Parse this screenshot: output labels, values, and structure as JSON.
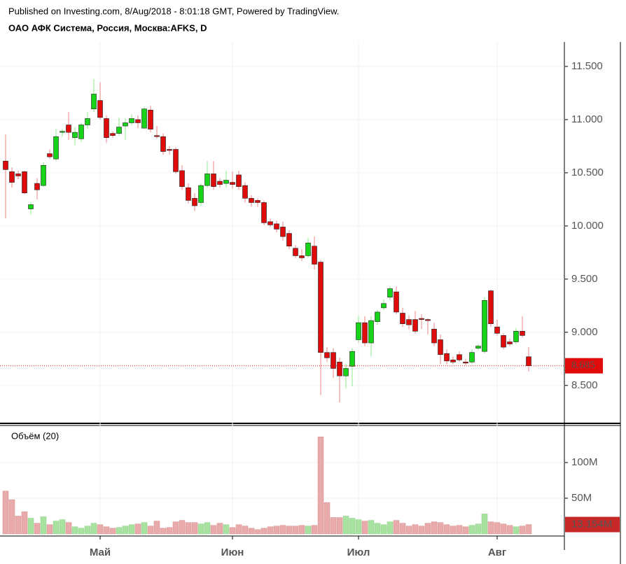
{
  "header": {
    "published": "Published on Investing.com, 8/Aug/2018 - 8:01:18 GMT, Powered by TradingView.",
    "symbol": "ОАО АФК Система, Россия, Москва:AFKS, D"
  },
  "chart_data": [
    {
      "type": "candlestick",
      "up_color": "#18d418",
      "down_color": "#e00c0c",
      "grid": true,
      "ylim": [
        8.15,
        11.73
      ],
      "yticks": [
        {
          "value": 8.5,
          "label": "8.500"
        },
        {
          "value": 9,
          "label": "9.000"
        },
        {
          "value": 9.5,
          "label": "9.500"
        },
        {
          "value": 10,
          "label": "10.000"
        },
        {
          "value": 10.5,
          "label": "10.500"
        },
        {
          "value": 11,
          "label": "11.000"
        },
        {
          "value": 11.5,
          "label": "11.500"
        }
      ],
      "open": [
        10.61,
        10.51,
        10.49,
        10.51,
        10.16,
        10.4,
        10.38,
        10.68,
        10.63,
        10.88,
        10.95,
        10.83,
        10.82,
        10.95,
        11.1,
        11.18,
        11.01,
        10.87,
        10.87,
        10.94,
        10.97,
        11.0,
        10.92,
        11.09,
        10.85,
        10.84,
        10.72,
        10.72,
        10.52,
        10.36,
        10.26,
        10.22,
        10.38,
        10.49,
        10.42,
        10.4,
        10.41,
        10.48,
        10.38,
        10.26,
        10.24,
        10.22,
        10.04,
        10.02,
        9.99,
        9.93,
        9.79,
        9.72,
        9.72,
        9.81,
        9.66,
        8.81,
        8.81,
        8.72,
        8.59,
        8.68,
        8.93,
        9.09,
        8.9,
        9.1,
        9.23,
        9.33,
        9.38,
        9.18,
        9.12,
        9.12,
        9.13,
        9.12,
        9.03,
        8.93,
        8.8,
        8.74,
        8.79,
        8.72,
        8.72,
        8.85,
        8.82,
        9.39,
        9.05,
        8.97,
        8.91,
        8.91,
        9.01,
        8.77
      ],
      "high": [
        10.86,
        10.55,
        10.52,
        10.52,
        10.22,
        10.45,
        10.6,
        10.72,
        10.91,
        10.91,
        11.07,
        10.93,
        10.97,
        11.07,
        11.38,
        11.35,
        11.04,
        10.89,
        11.02,
        11.01,
        11.05,
        11.04,
        11.12,
        11.13,
        10.94,
        10.87,
        10.75,
        10.74,
        10.57,
        10.4,
        10.31,
        10.4,
        10.61,
        10.61,
        10.45,
        10.52,
        10.51,
        10.52,
        10.41,
        10.29,
        10.26,
        10.24,
        10.07,
        10.05,
        10.04,
        9.96,
        9.82,
        9.78,
        9.89,
        9.9,
        9.68,
        8.86,
        8.85,
        8.76,
        8.7,
        8.85,
        9.15,
        9.15,
        9.15,
        9.21,
        9.31,
        9.43,
        9.43,
        9.23,
        9.16,
        9.2,
        9.17,
        9.13,
        9.09,
        8.98,
        8.84,
        8.77,
        8.82,
        8.75,
        8.84,
        8.89,
        9.33,
        9.4,
        9.12,
        8.99,
        8.94,
        9.04,
        9.15,
        8.86
      ],
      "low": [
        10.07,
        10.36,
        10.44,
        10.3,
        10.11,
        10.25,
        10.37,
        10.63,
        10.61,
        10.84,
        10.81,
        10.76,
        10.79,
        10.91,
        11.07,
        11.0,
        10.78,
        10.83,
        10.85,
        10.81,
        10.95,
        10.92,
        10.91,
        10.88,
        10.82,
        10.67,
        10.67,
        10.49,
        10.34,
        10.21,
        10.14,
        10.19,
        10.36,
        10.34,
        10.36,
        10.36,
        10.35,
        10.34,
        10.22,
        10.18,
        10.18,
        10.01,
        9.99,
        9.94,
        9.86,
        9.78,
        9.7,
        9.67,
        9.7,
        9.59,
        8.41,
        8.72,
        8.57,
        8.34,
        8.47,
        8.49,
        8.9,
        8.87,
        8.77,
        9.07,
        9.21,
        9.3,
        9.17,
        9.05,
        9.03,
        8.99,
        9.03,
        8.98,
        8.87,
        8.7,
        8.7,
        8.7,
        8.72,
        8.69,
        8.7,
        8.83,
        8.8,
        9.05,
        8.97,
        8.84,
        8.87,
        8.89,
        8.95,
        8.63
      ],
      "close": [
        10.53,
        10.41,
        10.47,
        10.31,
        10.2,
        10.34,
        10.57,
        10.65,
        10.84,
        10.89,
        10.88,
        10.88,
        10.95,
        11.01,
        11.24,
        11.02,
        10.83,
        10.85,
        10.93,
        10.97,
        11.01,
        10.97,
        11.1,
        10.91,
        10.84,
        10.7,
        10.71,
        10.51,
        10.37,
        10.24,
        10.19,
        10.38,
        10.49,
        10.37,
        10.39,
        10.43,
        10.39,
        10.37,
        10.26,
        10.22,
        10.22,
        10.03,
        10.01,
        9.97,
        9.9,
        9.81,
        9.72,
        9.7,
        9.84,
        9.64,
        8.81,
        8.76,
        8.66,
        8.59,
        8.66,
        8.82,
        9.09,
        8.9,
        9.11,
        9.19,
        9.27,
        9.41,
        9.19,
        9.08,
        9.07,
        9.01,
        9.12,
        9.11,
        8.9,
        8.79,
        8.73,
        8.72,
        8.74,
        8.71,
        8.81,
        8.87,
        9.3,
        9.08,
        8.99,
        8.86,
        8.89,
        9.01,
        8.97,
        8.685
      ]
    },
    {
      "type": "bar",
      "title": "Объём (20)",
      "up_color": "#a8e2a0",
      "down_color": "#e8aaaa",
      "tag_color": "#c62828",
      "grid": true,
      "ylim": [
        0,
        152000000
      ],
      "yticks": [
        {
          "value": 50000000,
          "label": "50M"
        },
        {
          "value": 100000000,
          "label": "100M"
        }
      ],
      "categories": [
        null,
        null,
        null,
        null,
        null,
        null,
        null,
        null,
        null,
        null,
        null,
        null,
        null,
        null,
        null,
        "Май",
        null,
        null,
        null,
        null,
        null,
        null,
        null,
        null,
        null,
        null,
        null,
        null,
        null,
        null,
        null,
        null,
        null,
        null,
        null,
        null,
        "Июн",
        null,
        null,
        null,
        null,
        null,
        null,
        null,
        null,
        null,
        null,
        null,
        null,
        null,
        null,
        null,
        null,
        null,
        null,
        null,
        "Июл",
        null,
        null,
        null,
        null,
        null,
        null,
        null,
        null,
        null,
        null,
        null,
        null,
        null,
        null,
        null,
        null,
        null,
        null,
        null,
        null,
        null,
        "Авг",
        null,
        null,
        null,
        null,
        null
      ],
      "values": [
        60000000,
        48000000,
        25000000,
        31000000,
        22000000,
        15000000,
        24000000,
        13000000,
        18000000,
        20000000,
        16000000,
        10000000,
        8000000,
        11000000,
        15000000,
        13000000,
        10000000,
        8000000,
        9000000,
        11000000,
        13000000,
        14000000,
        16000000,
        11000000,
        18000000,
        8000000,
        9000000,
        17000000,
        19000000,
        16000000,
        16000000,
        14000000,
        16000000,
        12000000,
        15000000,
        13000000,
        9000000,
        13000000,
        11000000,
        8000000,
        6000000,
        8000000,
        10000000,
        11000000,
        12000000,
        11000000,
        11000000,
        12000000,
        11000000,
        12000000,
        136000000,
        44000000,
        23000000,
        23000000,
        25000000,
        22000000,
        20000000,
        18000000,
        19000000,
        15000000,
        13000000,
        17000000,
        19000000,
        15000000,
        11000000,
        13000000,
        11000000,
        15000000,
        17000000,
        16000000,
        13000000,
        11000000,
        12000000,
        10000000,
        12000000,
        14000000,
        28000000,
        17000000,
        16000000,
        14000000,
        12000000,
        10000000,
        11000000,
        13154000
      ],
      "value_labels": [
        null,
        null,
        null,
        null,
        null,
        null,
        null,
        null,
        null,
        null,
        null,
        null,
        null,
        null,
        null,
        null,
        null,
        null,
        null,
        null,
        null,
        null,
        null,
        null,
        null,
        null,
        null,
        null,
        null,
        null,
        null,
        null,
        null,
        null,
        null,
        null,
        null,
        null,
        null,
        null,
        null,
        null,
        null,
        null,
        null,
        null,
        null,
        null,
        null,
        null,
        null,
        null,
        null,
        null,
        null,
        null,
        null,
        null,
        null,
        null,
        null,
        null,
        null,
        null,
        null,
        null,
        null,
        null,
        null,
        null,
        null,
        null,
        null,
        null,
        null,
        null,
        null,
        null,
        null,
        null,
        null,
        null,
        null,
        "13.154M"
      ]
    }
  ]
}
